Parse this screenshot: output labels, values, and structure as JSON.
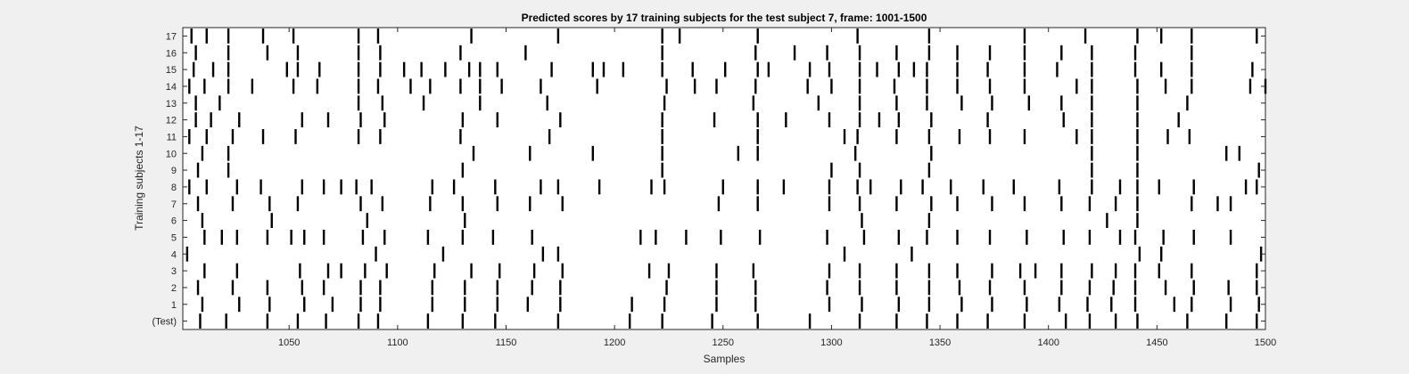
{
  "chart_data": {
    "type": "raster",
    "title": "Predicted scores by 17 training subjects for the test subject 7, frame: 1001-1500",
    "xlabel": "Samples",
    "ylabel": "Training subjects 1-17",
    "xlim": [
      1001,
      1500
    ],
    "xticks": [
      1050,
      1100,
      1150,
      1200,
      1250,
      1300,
      1350,
      1400,
      1450,
      1500
    ],
    "rows": [
      "(Test)",
      "1",
      "2",
      "3",
      "4",
      "5",
      "6",
      "7",
      "8",
      "9",
      "10",
      "11",
      "12",
      "13",
      "14",
      "15",
      "16",
      "17"
    ],
    "grid": false,
    "series": [
      {
        "row": "(Test)",
        "x": [
          1009,
          1021,
          1040,
          1054,
          1067,
          1082,
          1091,
          1114,
          1130,
          1145,
          1174,
          1207,
          1222,
          1245,
          1266,
          1290,
          1313,
          1330,
          1344,
          1358,
          1372,
          1389,
          1408,
          1419,
          1431,
          1441,
          1464,
          1482,
          1496
        ]
      },
      {
        "row": "1",
        "x": [
          1010,
          1027,
          1041,
          1057,
          1070,
          1083,
          1092,
          1116,
          1131,
          1146,
          1160,
          1175,
          1208,
          1223,
          1247,
          1265,
          1299,
          1314,
          1331,
          1345,
          1360,
          1374,
          1390,
          1405,
          1418,
          1429,
          1440,
          1458,
          1466,
          1484,
          1497
        ]
      },
      {
        "row": "2",
        "x": [
          1008,
          1024,
          1040,
          1056,
          1066,
          1083,
          1092,
          1116,
          1131,
          1146,
          1162,
          1175,
          1224,
          1247,
          1265,
          1298,
          1313,
          1330,
          1345,
          1359,
          1373,
          1389,
          1406,
          1419,
          1430,
          1440,
          1454,
          1467,
          1483,
          1496
        ]
      },
      {
        "row": "3",
        "x": [
          1011,
          1026,
          1055,
          1068,
          1074,
          1085,
          1095,
          1117,
          1134,
          1147,
          1163,
          1176,
          1216,
          1225,
          1247,
          1264,
          1299,
          1313,
          1330,
          1345,
          1358,
          1374,
          1387,
          1394,
          1406,
          1420,
          1431,
          1440,
          1451,
          1466,
          1496
        ]
      },
      {
        "row": "4",
        "x": [
          1003,
          1090,
          1121,
          1167,
          1174,
          1306,
          1337,
          1442,
          1452,
          1498
        ]
      },
      {
        "row": "5",
        "x": [
          1011,
          1019,
          1026,
          1040,
          1051,
          1057,
          1066,
          1084,
          1094,
          1114,
          1130,
          1144,
          1162,
          1212,
          1219,
          1233,
          1249,
          1267,
          1298,
          1315,
          1331,
          1344,
          1358,
          1373,
          1390,
          1407,
          1419,
          1433,
          1440,
          1453,
          1467,
          1484
        ]
      },
      {
        "row": "6",
        "x": [
          1010,
          1042,
          1086,
          1131,
          1314,
          1345,
          1427,
          1441
        ]
      },
      {
        "row": "7",
        "x": [
          1008,
          1024,
          1041,
          1054,
          1083,
          1093,
          1115,
          1130,
          1146,
          1161,
          1176,
          1248,
          1266,
          1299,
          1313,
          1330,
          1346,
          1358,
          1374,
          1389,
          1406,
          1419,
          1431,
          1441,
          1466,
          1478,
          1484
        ]
      },
      {
        "row": "8",
        "x": [
          1004,
          1012,
          1026,
          1037,
          1056,
          1066,
          1074,
          1081,
          1088,
          1116,
          1126,
          1145,
          1166,
          1174,
          1193,
          1217,
          1223,
          1250,
          1266,
          1278,
          1299,
          1312,
          1318,
          1332,
          1342,
          1355,
          1370,
          1384,
          1405,
          1420,
          1433,
          1441,
          1451,
          1467,
          1491,
          1496
        ]
      },
      {
        "row": "9",
        "x": [
          1008,
          1022,
          1130,
          1222,
          1300,
          1313,
          1345,
          1420,
          1441,
          1497
        ]
      },
      {
        "row": "10",
        "x": [
          1010,
          1022,
          1135,
          1161,
          1190,
          1222,
          1257,
          1266,
          1311,
          1346,
          1420,
          1441,
          1482,
          1488
        ]
      },
      {
        "row": "11",
        "x": [
          1004,
          1012,
          1024,
          1038,
          1053,
          1082,
          1092,
          1129,
          1170,
          1222,
          1266,
          1306,
          1312,
          1330,
          1345,
          1359,
          1373,
          1389,
          1413,
          1420,
          1441,
          1455,
          1465
        ]
      },
      {
        "row": "12",
        "x": [
          1007,
          1014,
          1027,
          1056,
          1068,
          1083,
          1094,
          1130,
          1146,
          1175,
          1222,
          1246,
          1266,
          1279,
          1299,
          1313,
          1322,
          1331,
          1346,
          1372,
          1407,
          1420,
          1441,
          1460
        ]
      },
      {
        "row": "13",
        "x": [
          1007,
          1018,
          1082,
          1093,
          1112,
          1138,
          1169,
          1223,
          1264,
          1294,
          1313,
          1330,
          1344,
          1360,
          1374,
          1391,
          1406,
          1420,
          1441,
          1464
        ]
      },
      {
        "row": "14",
        "x": [
          1004,
          1011,
          1022,
          1033,
          1052,
          1063,
          1082,
          1091,
          1106,
          1115,
          1129,
          1138,
          1148,
          1166,
          1192,
          1224,
          1237,
          1247,
          1265,
          1289,
          1300,
          1313,
          1329,
          1344,
          1358,
          1373,
          1389,
          1413,
          1420,
          1441,
          1454,
          1466,
          1493,
          1500
        ]
      },
      {
        "row": "15",
        "x": [
          1006,
          1015,
          1022,
          1049,
          1054,
          1064,
          1082,
          1092,
          1103,
          1111,
          1122,
          1133,
          1138,
          1146,
          1171,
          1190,
          1195,
          1204,
          1222,
          1236,
          1251,
          1266,
          1271,
          1290,
          1299,
          1313,
          1321,
          1331,
          1338,
          1344,
          1358,
          1372,
          1389,
          1404,
          1420,
          1440,
          1452,
          1466,
          1494
        ]
      },
      {
        "row": "16",
        "x": [
          1007,
          1022,
          1040,
          1054,
          1082,
          1092,
          1129,
          1159,
          1222,
          1265,
          1283,
          1298,
          1313,
          1330,
          1345,
          1358,
          1373,
          1389,
          1406,
          1420,
          1440,
          1466
        ]
      },
      {
        "row": "17",
        "x": [
          1005,
          1012,
          1022,
          1038,
          1052,
          1082,
          1091,
          1134,
          1174,
          1222,
          1230,
          1266,
          1312,
          1345,
          1389,
          1417,
          1441,
          1452,
          1466,
          1496
        ]
      }
    ]
  }
}
